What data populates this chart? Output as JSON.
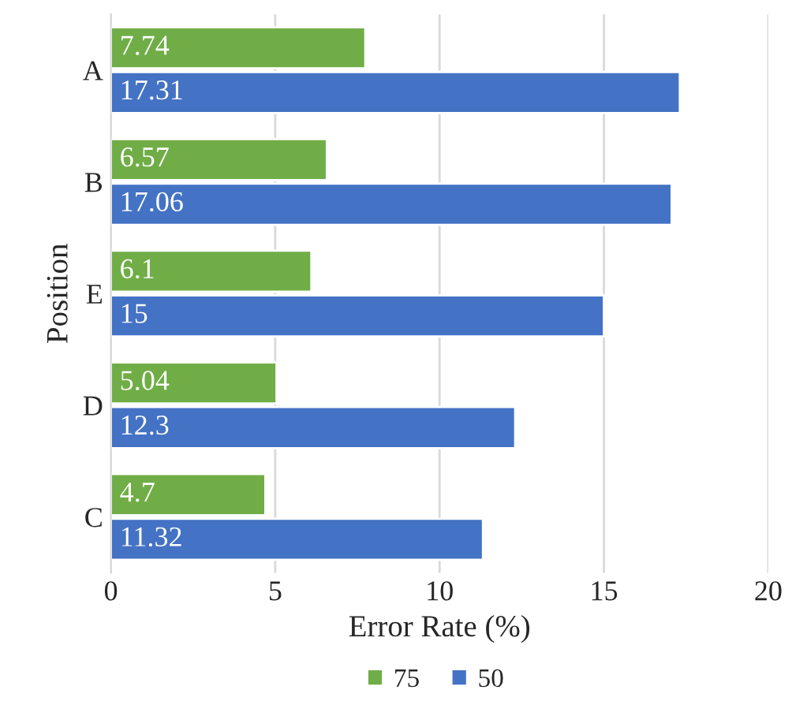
{
  "chart_data": {
    "type": "bar",
    "orientation": "horizontal",
    "ylabel": "Position",
    "xlabel": "Error Rate (%)",
    "categories": [
      "A",
      "B",
      "E",
      "D",
      "C"
    ],
    "series": [
      {
        "name": "75",
        "color": "#70ad47",
        "values": [
          7.74,
          6.57,
          6.1,
          5.04,
          4.7
        ]
      },
      {
        "name": "50",
        "color": "#4472c4",
        "values": [
          17.31,
          17.06,
          15,
          12.3,
          11.32
        ]
      }
    ],
    "xlim": [
      0,
      20
    ],
    "xticks": [
      0,
      5,
      10,
      15,
      20
    ],
    "grid": "x",
    "legend": "bottom",
    "data_labels": true
  }
}
